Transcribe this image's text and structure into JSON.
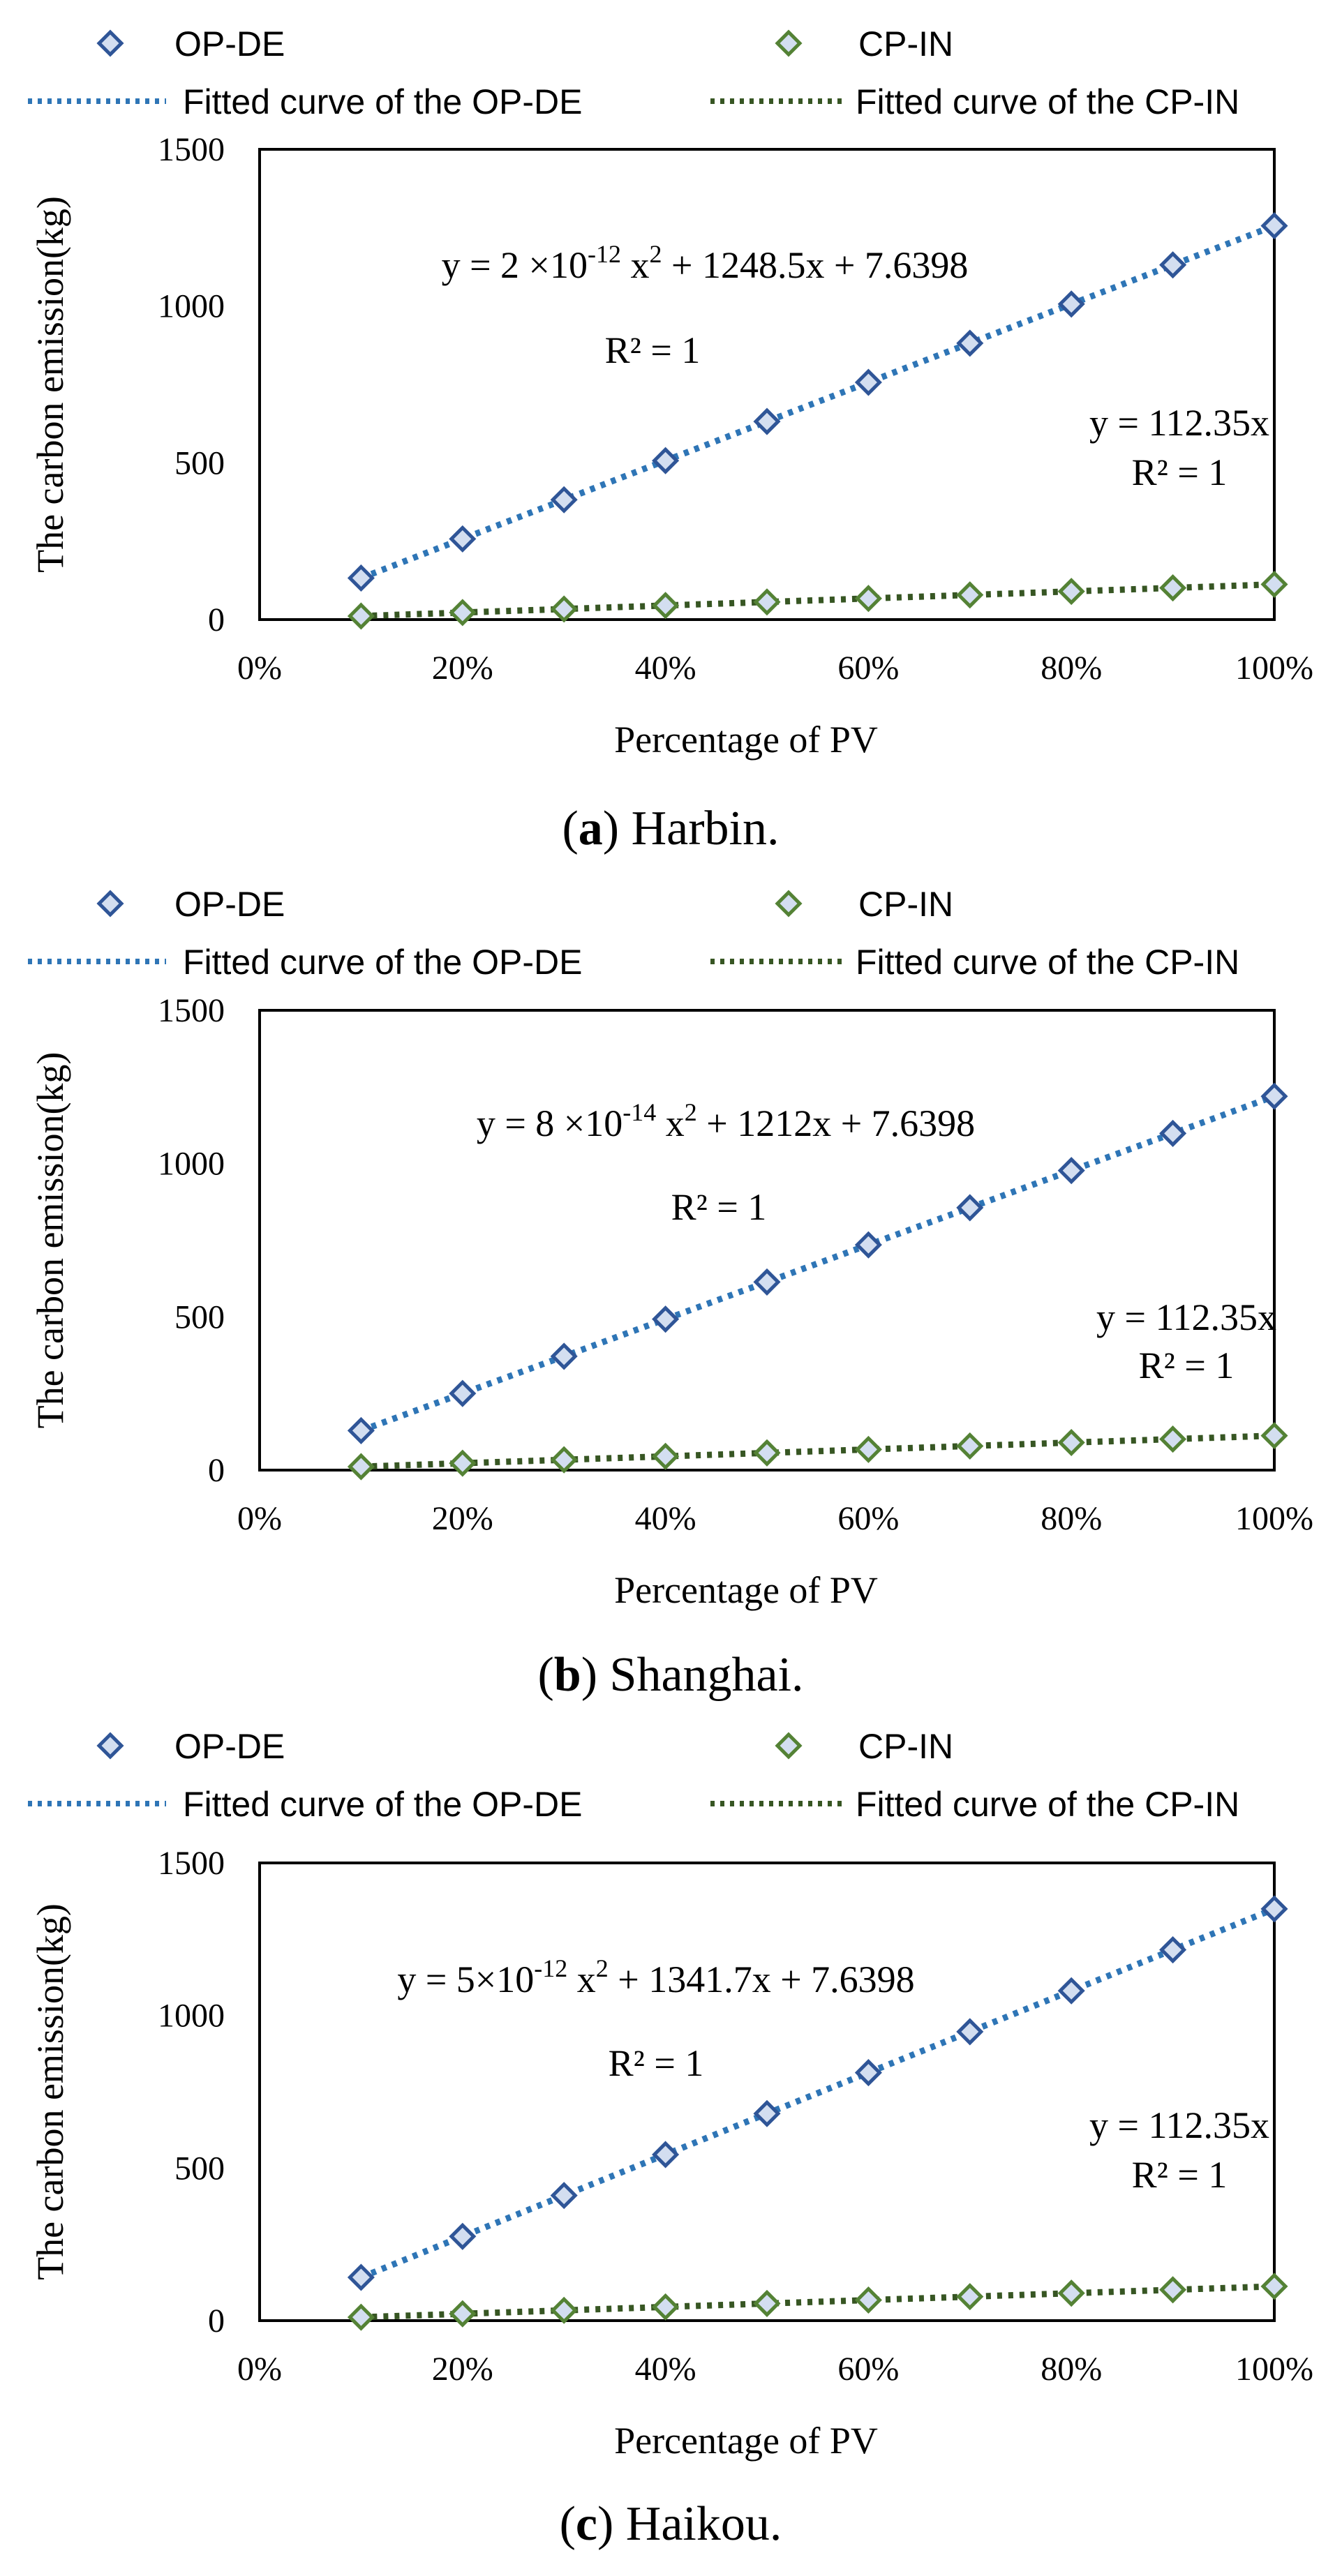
{
  "chart_data": [
    {
      "type": "scatter",
      "caption_label": "a",
      "caption_city": "Harbin.",
      "legend": {
        "series1": "OP-DE",
        "series2": "CP-IN",
        "fit1": "Fitted curve of the OP-DE",
        "fit2": "Fitted curve of the CP-IN"
      },
      "xlabel": "Percentage of PV",
      "ylabel": "The carbon emission(kg)",
      "xlim": [
        0,
        1
      ],
      "ylim": [
        0,
        1500
      ],
      "xticks": [
        "0%",
        "20%",
        "40%",
        "60%",
        "80%",
        "100%"
      ],
      "yticks": [
        "0",
        "500",
        "1000",
        "1500"
      ],
      "x": [
        0.1,
        0.2,
        0.3,
        0.4,
        0.5,
        0.6,
        0.7,
        0.8,
        0.9,
        1.0
      ],
      "series": [
        {
          "name": "OP-DE",
          "color": "#2E75B6",
          "values": [
            132.5,
            257.3,
            382.2,
            507.0,
            631.9,
            756.7,
            881.6,
            1006.4,
            1131.3,
            1256.1
          ]
        },
        {
          "name": "CP-IN",
          "color": "#548235",
          "values": [
            11.2,
            22.5,
            33.7,
            44.9,
            56.2,
            67.4,
            78.6,
            89.9,
            101.1,
            112.4
          ]
        }
      ],
      "fits": [
        {
          "series": "OP-DE",
          "color": "#2E75B6",
          "a": 1248.5,
          "b": 7.6398
        },
        {
          "series": "CP-IN",
          "color": "#375623",
          "a": 112.35,
          "b": 0
        }
      ],
      "eq1": {
        "pre": "y = 2 ×10",
        "exp": "-12",
        "mid": " x",
        "sq": "2",
        "post": " + 1248.5x + 7.6398"
      },
      "r2_1": "R² = 1",
      "eq2": "y = 112.35x",
      "r2_2": "R² = 1"
    },
    {
      "type": "scatter",
      "caption_label": "b",
      "caption_city": "Shanghai.",
      "legend": {
        "series1": "OP-DE",
        "series2": "CP-IN",
        "fit1": "Fitted curve of the OP-DE",
        "fit2": "Fitted curve of the CP-IN"
      },
      "xlabel": "Percentage of PV",
      "ylabel": "The carbon emission(kg)",
      "xlim": [
        0,
        1
      ],
      "ylim": [
        0,
        1500
      ],
      "xticks": [
        "0%",
        "20%",
        "40%",
        "60%",
        "80%",
        "100%"
      ],
      "yticks": [
        "0",
        "500",
        "1000",
        "1500"
      ],
      "x": [
        0.1,
        0.2,
        0.3,
        0.4,
        0.5,
        0.6,
        0.7,
        0.8,
        0.9,
        1.0
      ],
      "series": [
        {
          "name": "OP-DE",
          "color": "#2E75B6",
          "values": [
            128.8,
            250.0,
            371.2,
            492.4,
            613.6,
            734.8,
            856.0,
            977.2,
            1098.4,
            1219.6
          ]
        },
        {
          "name": "CP-IN",
          "color": "#548235",
          "values": [
            11.2,
            22.5,
            33.7,
            44.9,
            56.2,
            67.4,
            78.6,
            89.9,
            101.1,
            112.4
          ]
        }
      ],
      "fits": [
        {
          "series": "OP-DE",
          "color": "#2E75B6",
          "a": 1212,
          "b": 7.6398
        },
        {
          "series": "CP-IN",
          "color": "#375623",
          "a": 112.35,
          "b": 0
        }
      ],
      "eq1": {
        "pre": "y = 8 ×10",
        "exp": "-14",
        "mid": " x",
        "sq": "2",
        "post": " + 1212x + 7.6398"
      },
      "r2_1": "R² = 1",
      "eq2": "y = 112.35x",
      "r2_2": "R² = 1"
    },
    {
      "type": "scatter",
      "caption_label": "c",
      "caption_city": "Haikou.",
      "legend": {
        "series1": "OP-DE",
        "series2": "CP-IN",
        "fit1": "Fitted curve of the OP-DE",
        "fit2": "Fitted curve of the CP-IN"
      },
      "xlabel": "Percentage of PV",
      "ylabel": "The carbon emission(kg)",
      "xlim": [
        0,
        1
      ],
      "ylim": [
        0,
        1500
      ],
      "xticks": [
        "0%",
        "20%",
        "40%",
        "60%",
        "80%",
        "100%"
      ],
      "yticks": [
        "0",
        "500",
        "1000",
        "1500"
      ],
      "x": [
        0.1,
        0.2,
        0.3,
        0.4,
        0.5,
        0.6,
        0.7,
        0.8,
        0.9,
        1.0
      ],
      "series": [
        {
          "name": "OP-DE",
          "color": "#2E75B6",
          "values": [
            141.8,
            276.0,
            410.2,
            544.3,
            678.5,
            812.7,
            946.8,
            1081.0,
            1215.2,
            1349.3
          ]
        },
        {
          "name": "CP-IN",
          "color": "#548235",
          "values": [
            11.2,
            22.5,
            33.7,
            44.9,
            56.2,
            67.4,
            78.6,
            89.9,
            101.1,
            112.4
          ]
        }
      ],
      "fits": [
        {
          "series": "OP-DE",
          "color": "#2E75B6",
          "a": 1341.7,
          "b": 7.6398
        },
        {
          "series": "CP-IN",
          "color": "#375623",
          "a": 112.35,
          "b": 0
        }
      ],
      "eq1": {
        "pre": "y = 5×10",
        "exp": "-12",
        "mid": " x",
        "sq": "2",
        "post": " + 1341.7x + 7.6398"
      },
      "r2_1": "R² = 1",
      "eq2": "y = 112.35x",
      "r2_2": "R² = 1"
    }
  ]
}
